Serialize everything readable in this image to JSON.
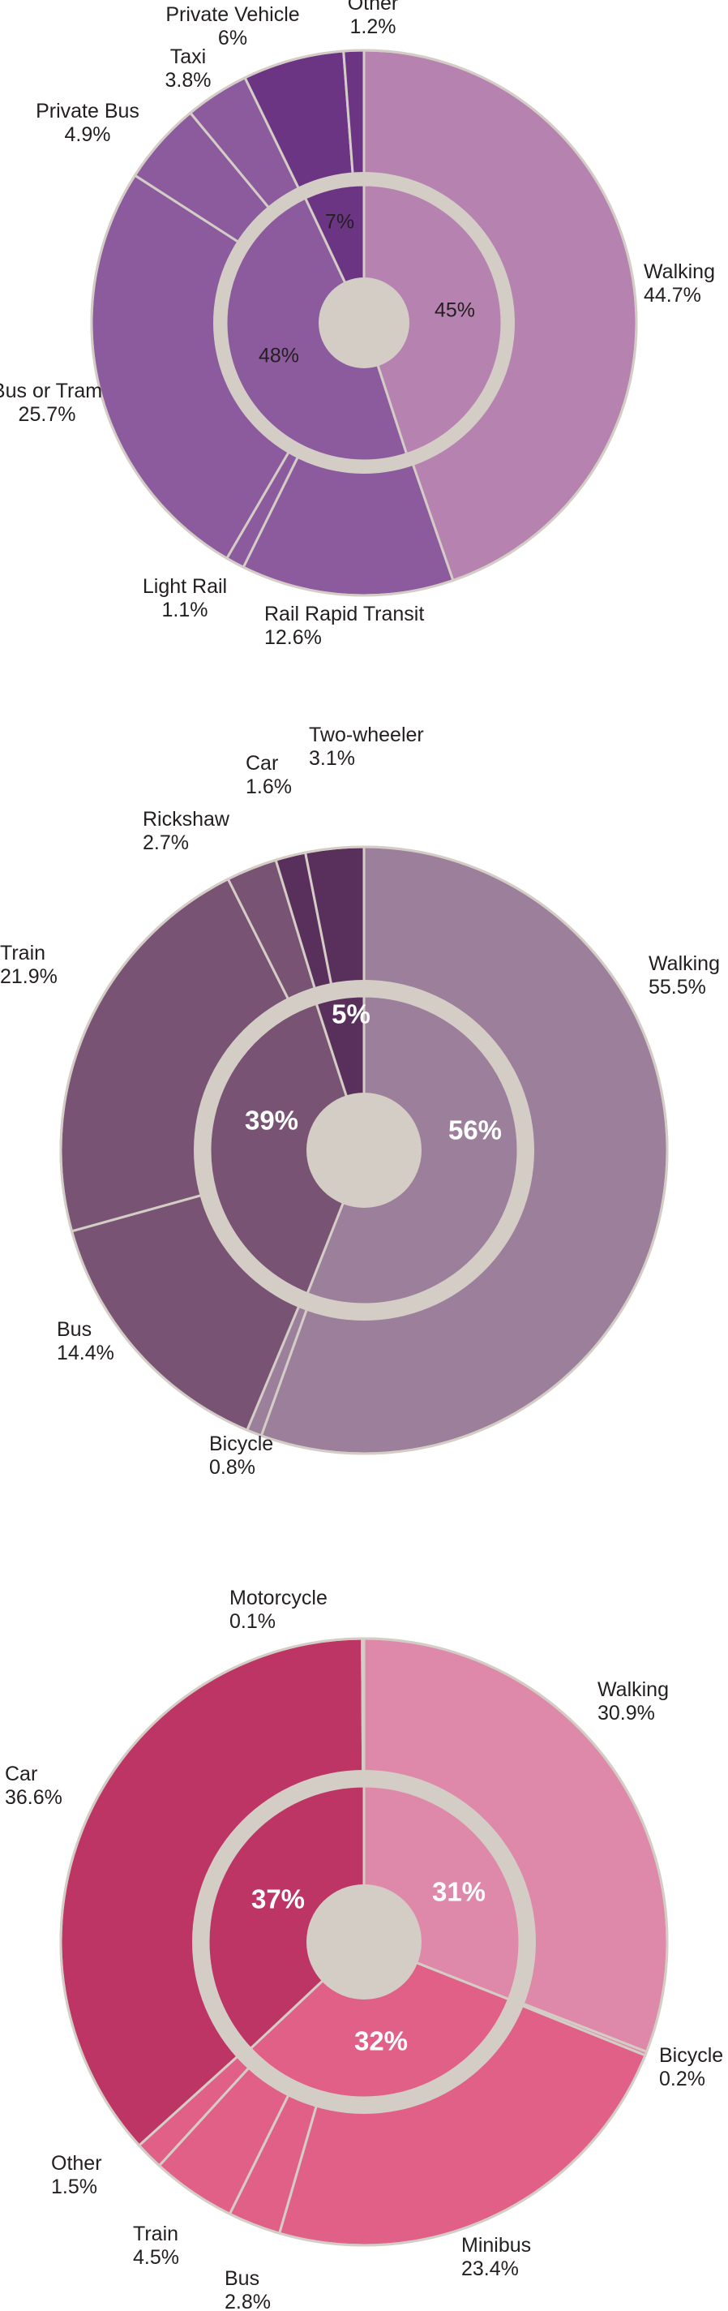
{
  "colors": {
    "background": "#ffffff",
    "ring": "#d4cdc6",
    "separator": "#d4cdc6"
  },
  "chart_data": [
    {
      "type": "pie",
      "style": "nested-donut",
      "outer": [
        {
          "label": "Walking",
          "value": 44.7,
          "display": "44.7%",
          "color": "#b683b0"
        },
        {
          "label": "Rail Rapid Transit",
          "value": 12.6,
          "display": "12.6%",
          "color": "#8b5b9e"
        },
        {
          "label": "Light Rail",
          "value": 1.1,
          "display": "1.1%",
          "color": "#8b5b9e"
        },
        {
          "label": "Bus or Tram",
          "value": 25.7,
          "display": "25.7%",
          "color": "#8b5b9e"
        },
        {
          "label": "Private Bus",
          "value": 4.9,
          "display": "4.9%",
          "color": "#8b5b9e"
        },
        {
          "label": "Taxi",
          "value": 3.8,
          "display": "3.8%",
          "color": "#8b5b9e"
        },
        {
          "label": "Private Vehicle",
          "value": 6,
          "display": "6%",
          "color": "#6c3584"
        },
        {
          "label": "Other",
          "value": 1.2,
          "display": "1.2%",
          "color": "#6c3584"
        }
      ],
      "inner": [
        {
          "value": 45,
          "display": "45%",
          "color": "#b683b0"
        },
        {
          "value": 48,
          "display": "48%",
          "color": "#8b5b9e"
        },
        {
          "value": 7,
          "display": "7%",
          "color": "#6c3584"
        }
      ]
    },
    {
      "type": "pie",
      "style": "nested-donut",
      "outer": [
        {
          "label": "Walking",
          "value": 55.5,
          "display": "55.5%",
          "color": "#9c7f9b"
        },
        {
          "label": "Bicycle",
          "value": 0.8,
          "display": "0.8%",
          "color": "#9c7f9b"
        },
        {
          "label": "Bus",
          "value": 14.4,
          "display": "14.4%",
          "color": "#785373"
        },
        {
          "label": "Train",
          "value": 21.9,
          "display": "21.9%",
          "color": "#785373"
        },
        {
          "label": "Rickshaw",
          "value": 2.7,
          "display": "2.7%",
          "color": "#785373"
        },
        {
          "label": "Car",
          "value": 1.6,
          "display": "1.6%",
          "color": "#58305b"
        },
        {
          "label": "Two-wheeler",
          "value": 3.1,
          "display": "3.1%",
          "color": "#58305b"
        }
      ],
      "inner": [
        {
          "value": 56,
          "display": "56%",
          "color": "#9c7f9b"
        },
        {
          "value": 39,
          "display": "39%",
          "color": "#785373"
        },
        {
          "value": 5,
          "display": "5%",
          "color": "#58305b"
        }
      ]
    },
    {
      "type": "pie",
      "style": "nested-donut",
      "outer": [
        {
          "label": "Walking",
          "value": 30.9,
          "display": "30.9%",
          "color": "#de89a9"
        },
        {
          "label": "Bicycle",
          "value": 0.2,
          "display": "0.2%",
          "color": "#de89a9"
        },
        {
          "label": "Minibus",
          "value": 23.4,
          "display": "23.4%",
          "color": "#e06088"
        },
        {
          "label": "Bus",
          "value": 2.8,
          "display": "2.8%",
          "color": "#e06088"
        },
        {
          "label": "Train",
          "value": 4.5,
          "display": "4.5%",
          "color": "#e06088"
        },
        {
          "label": "Other",
          "value": 1.5,
          "display": "1.5%",
          "color": "#e06088"
        },
        {
          "label": "Car",
          "value": 36.6,
          "display": "36.6%",
          "color": "#bc3565"
        },
        {
          "label": "Motorcycle",
          "value": 0.1,
          "display": "0.1%",
          "color": "#bc3565"
        }
      ],
      "inner": [
        {
          "value": 31,
          "display": "31%",
          "color": "#de89a9"
        },
        {
          "value": 32,
          "display": "32%",
          "color": "#e06088"
        },
        {
          "value": 37,
          "display": "37%",
          "color": "#bc3565"
        }
      ]
    }
  ]
}
